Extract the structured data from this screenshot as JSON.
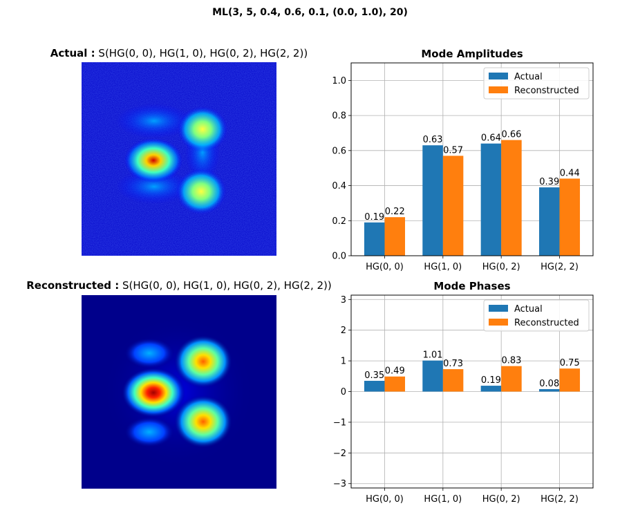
{
  "figure": {
    "suptitle": "ML(3, 5, 0.4, 0.6, 0.1, (0.0, 1.0), 20)"
  },
  "images": {
    "actual": {
      "label": "Actual :",
      "formula": "S(HG(0, 0), HG(1, 0), HG(0, 2), HG(2, 2))"
    },
    "reconstructed": {
      "label": "Reconstructed :",
      "formula": "S(HG(0, 0), HG(1, 0), HG(0, 2), HG(2, 2))"
    }
  },
  "colors": {
    "actual": "#1f77b4",
    "reconstructed": "#ff7f0e",
    "grid": "#b0b0b0",
    "beam_background": "#00008b"
  },
  "chart_data": [
    {
      "type": "bar",
      "title": "Mode Amplitudes",
      "categories": [
        "HG(0, 0)",
        "HG(1, 0)",
        "HG(0, 2)",
        "HG(2, 2)"
      ],
      "series": [
        {
          "name": "Actual",
          "values": [
            0.19,
            0.63,
            0.64,
            0.39
          ]
        },
        {
          "name": "Reconstructed",
          "values": [
            0.22,
            0.57,
            0.66,
            0.44
          ]
        }
      ],
      "ylim": [
        0,
        1.1
      ],
      "yticks": [
        0.0,
        0.2,
        0.4,
        0.6,
        0.8,
        1.0
      ],
      "ytick_labels": [
        "0.0",
        "0.2",
        "0.4",
        "0.6",
        "0.8",
        "1.0"
      ],
      "grid": true,
      "legend": "top-right"
    },
    {
      "type": "bar",
      "title": "Mode Phases",
      "categories": [
        "HG(0, 0)",
        "HG(1, 0)",
        "HG(0, 2)",
        "HG(2, 2)"
      ],
      "series": [
        {
          "name": "Actual",
          "values": [
            0.35,
            1.01,
            0.19,
            0.08
          ]
        },
        {
          "name": "Reconstructed",
          "values": [
            0.49,
            0.73,
            0.83,
            0.75
          ]
        }
      ],
      "ylim": [
        -3.14159,
        3.14159
      ],
      "yticks": [
        -3,
        -2,
        -1,
        0,
        1,
        2,
        3
      ],
      "ytick_labels": [
        "−3",
        "−2",
        "−1",
        "0",
        "1",
        "2",
        "3"
      ],
      "grid": true,
      "legend": "top-right"
    }
  ]
}
